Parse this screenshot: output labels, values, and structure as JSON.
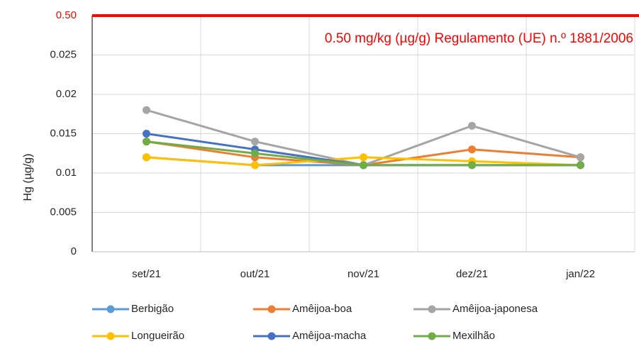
{
  "chart_data": {
    "type": "line",
    "y_label": "Hg (µg/g)",
    "categories": [
      "set/21",
      "out/21",
      "nov/21",
      "dez/21",
      "jan/22"
    ],
    "series": [
      {
        "name": "Berbigão",
        "color": "#5b9bd5",
        "values": [
          0.012,
          0.011,
          0.011,
          0.011,
          0.011
        ]
      },
      {
        "name": "Amêijoa-boa",
        "color": "#ed7d31",
        "values": [
          0.014,
          0.012,
          0.011,
          0.013,
          0.012
        ]
      },
      {
        "name": "Amêijoa-japonesa",
        "color": "#a5a5a5",
        "values": [
          0.018,
          0.014,
          0.011,
          0.016,
          0.012
        ]
      },
      {
        "name": "Longueirão",
        "color": "#ffc000",
        "values": [
          0.012,
          0.011,
          0.012,
          0.0115,
          0.011
        ]
      },
      {
        "name": "Amêijoa-macha",
        "color": "#4472c4",
        "values": [
          0.015,
          0.013,
          0.011,
          0.011,
          0.011
        ]
      },
      {
        "name": "Mexilhão",
        "color": "#70ad47",
        "values": [
          0.014,
          0.0125,
          0.011,
          0.011,
          0.011
        ]
      }
    ],
    "ylim": [
      0,
      0.03
    ],
    "yticks": [
      0,
      0.005,
      0.01,
      0.015,
      0.02,
      0.025
    ],
    "limit_line": {
      "value": 0.5,
      "label": "0.50",
      "text": "0.50 mg/kg (µg/g) Regulamento (UE) n.º 1881/2006",
      "color": "#ff0000"
    },
    "grid": true,
    "legend": "bottom"
  }
}
